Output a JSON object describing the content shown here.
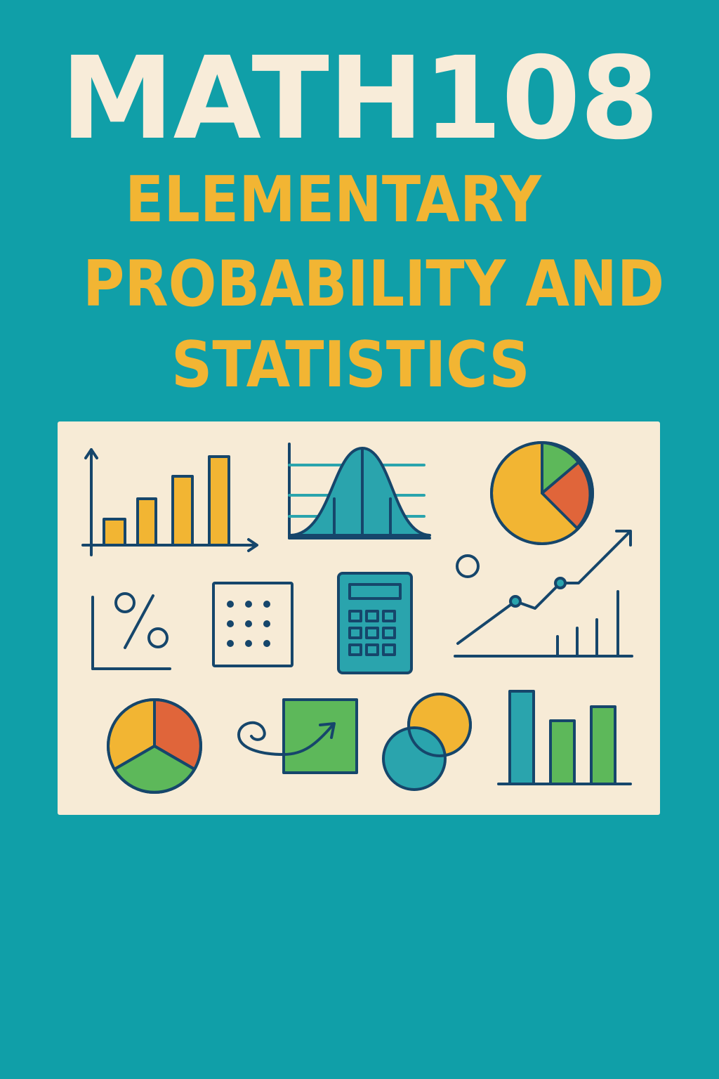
{
  "cover": {
    "course_code": "MATH108",
    "title_lines": [
      "ELEMENTARY",
      "PROBABILITY AND",
      "STATISTICS"
    ]
  },
  "colors": {
    "background": "#109fa8",
    "panel": "#f7ebd6",
    "code_text": "#f8ecd9",
    "title_text": "#f2b533",
    "stroke": "#16466b",
    "yellow": "#f2b533",
    "teal": "#2aa4ad",
    "orange": "#e0653a",
    "green": "#5db85a"
  },
  "icons": [
    "bar-chart-icon",
    "normal-distribution-icon",
    "pie-chart-icon",
    "percent-icon",
    "dot-grid-icon",
    "calculator-icon",
    "trend-line-icon",
    "pie-chart-three-slice-icon",
    "arrow-square-icon",
    "venn-diagram-icon",
    "bar-chart-small-icon"
  ]
}
